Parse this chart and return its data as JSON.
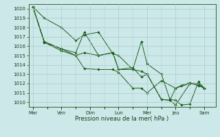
{
  "background_color": "#cce8e8",
  "grid_color": "#aacccc",
  "line_color": "#1a5c1a",
  "xlabel": "Pression niveau de la mer( hPa )",
  "ylim": [
    1009.5,
    1020.5
  ],
  "yticks": [
    1010,
    1011,
    1012,
    1013,
    1014,
    1015,
    1016,
    1017,
    1018,
    1019,
    1020
  ],
  "day_labels": [
    "Mar",
    "Ven",
    "Dim",
    "Lun",
    "Mer",
    "Jeu",
    "Sam"
  ],
  "day_positions": [
    0,
    1,
    2,
    3,
    4,
    5,
    6
  ],
  "series": [
    [
      [
        0,
        1020.2
      ],
      [
        0.4,
        1019.0
      ],
      [
        1.0,
        1018.0
      ],
      [
        1.5,
        1016.6
      ],
      [
        1.8,
        1017.2
      ],
      [
        2.3,
        1017.5
      ],
      [
        2.8,
        1015.2
      ],
      [
        3.0,
        1015.0
      ],
      [
        3.5,
        1013.5
      ],
      [
        3.8,
        1016.5
      ],
      [
        4.0,
        1014.1
      ],
      [
        4.5,
        1013.0
      ],
      [
        4.8,
        1010.3
      ],
      [
        5.0,
        1010.2
      ],
      [
        5.2,
        1009.7
      ],
      [
        5.5,
        1009.8
      ],
      [
        5.8,
        1012.2
      ],
      [
        6.0,
        1011.5
      ]
    ],
    [
      [
        0,
        1020.2
      ],
      [
        0.4,
        1016.5
      ],
      [
        1.0,
        1015.7
      ],
      [
        1.5,
        1015.3
      ],
      [
        1.8,
        1017.5
      ],
      [
        2.3,
        1015.0
      ],
      [
        2.8,
        1015.3
      ],
      [
        3.0,
        1013.5
      ],
      [
        3.5,
        1013.7
      ],
      [
        3.8,
        1012.7
      ],
      [
        4.0,
        1013.0
      ],
      [
        4.5,
        1010.3
      ],
      [
        4.8,
        1010.2
      ],
      [
        5.0,
        1009.7
      ],
      [
        5.5,
        1012.0
      ],
      [
        5.8,
        1011.8
      ],
      [
        6.0,
        1011.5
      ]
    ],
    [
      [
        0,
        1020.2
      ],
      [
        0.4,
        1016.4
      ],
      [
        1.0,
        1015.7
      ],
      [
        1.5,
        1015.0
      ],
      [
        1.8,
        1015.3
      ],
      [
        2.3,
        1015.0
      ],
      [
        2.8,
        1015.3
      ],
      [
        3.0,
        1013.5
      ],
      [
        3.5,
        1013.5
      ],
      [
        3.8,
        1013.3
      ],
      [
        4.0,
        1013.0
      ],
      [
        4.5,
        1010.3
      ],
      [
        4.8,
        1010.2
      ],
      [
        5.0,
        1011.5
      ],
      [
        5.5,
        1012.0
      ],
      [
        5.8,
        1012.0
      ],
      [
        6.0,
        1011.5
      ]
    ],
    [
      [
        0,
        1020.2
      ],
      [
        0.4,
        1016.4
      ],
      [
        1.0,
        1015.5
      ],
      [
        1.5,
        1015.0
      ],
      [
        1.8,
        1013.6
      ],
      [
        2.3,
        1013.5
      ],
      [
        2.8,
        1013.5
      ],
      [
        3.0,
        1013.2
      ],
      [
        3.5,
        1011.5
      ],
      [
        3.8,
        1011.5
      ],
      [
        4.0,
        1011.0
      ],
      [
        4.5,
        1012.3
      ],
      [
        5.0,
        1011.5
      ],
      [
        5.2,
        1011.8
      ],
      [
        5.5,
        1012.1
      ],
      [
        5.8,
        1011.8
      ],
      [
        6.0,
        1011.5
      ]
    ]
  ]
}
